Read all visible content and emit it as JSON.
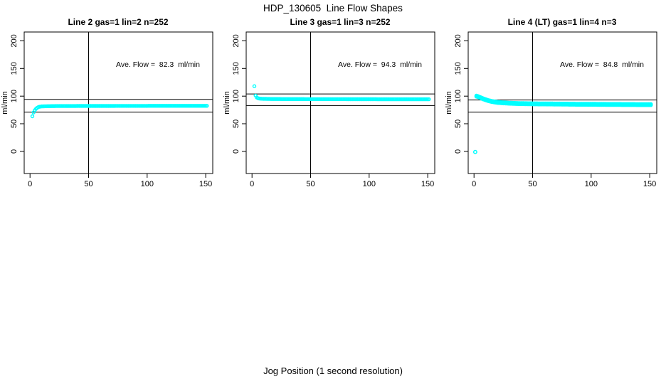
{
  "figure": {
    "title": "HDP_130605  Line Flow Shapes",
    "xlabel": "Jog Position (1 second resolution)",
    "ylabel": "ml/min",
    "background": "#FFFFFF",
    "axis_color": "#000000",
    "marker_color": "#00FFFF"
  },
  "chart_data": [
    {
      "type": "scatter",
      "title": "Line 2 gas=1 lin=2 n=252",
      "annotation": "Ave. Flow =  82.3  ml/min",
      "ave_flow_ml_min": 82.3,
      "gas": 1,
      "lin": 2,
      "n": 252,
      "xlim": [
        -5,
        156
      ],
      "ylim": [
        -40,
        216
      ],
      "xticks": [
        0,
        50,
        100,
        150
      ],
      "yticks": [
        0,
        50,
        100,
        150,
        200
      ],
      "ylabel": "ml/min",
      "grid": false,
      "reference_lines": {
        "vertical_x": 50,
        "horizontal_y": [
          94,
          71
        ]
      },
      "marker": "open-circle",
      "marker_color": "#00FFFF",
      "x_start": 2,
      "x_end": 151,
      "x_step": 1,
      "band_offsets": [
        0
      ],
      "anchors": [
        [
          2,
          63.5
        ],
        [
          3,
          70.5
        ],
        [
          4,
          74.5
        ],
        [
          5,
          77
        ],
        [
          6,
          78.8
        ],
        [
          7,
          80
        ],
        [
          8,
          80.8
        ],
        [
          10,
          81.4
        ],
        [
          15,
          81.8
        ],
        [
          20,
          82
        ],
        [
          30,
          82.1
        ],
        [
          50,
          82.2
        ],
        [
          80,
          82.3
        ],
        [
          100,
          82.4
        ],
        [
          120,
          82.5
        ],
        [
          151,
          82.5
        ]
      ],
      "outliers": []
    },
    {
      "type": "scatter",
      "title": "Line 3 gas=1 lin=3 n=252",
      "annotation": "Ave. Flow =  94.3  ml/min",
      "ave_flow_ml_min": 94.3,
      "gas": 1,
      "lin": 3,
      "n": 252,
      "xlim": [
        -5,
        156
      ],
      "ylim": [
        -40,
        216
      ],
      "xticks": [
        0,
        50,
        100,
        150
      ],
      "yticks": [
        0,
        50,
        100,
        150,
        200
      ],
      "ylabel": "ml/min",
      "grid": false,
      "reference_lines": {
        "vertical_x": 50,
        "horizontal_y": [
          104,
          83
        ]
      },
      "marker": "open-circle",
      "marker_color": "#00FFFF",
      "x_start": 2,
      "x_end": 151,
      "x_step": 1,
      "band_offsets": [
        0
      ],
      "anchors": [
        [
          2,
          118
        ],
        [
          3,
          101
        ],
        [
          4,
          97.5
        ],
        [
          5,
          96.2
        ],
        [
          6,
          95.7
        ],
        [
          8,
          95.3
        ],
        [
          10,
          95.1
        ],
        [
          15,
          94.9
        ],
        [
          20,
          94.8
        ],
        [
          30,
          94.7
        ],
        [
          50,
          94.6
        ],
        [
          80,
          94.5
        ],
        [
          100,
          94.4
        ],
        [
          120,
          94.3
        ],
        [
          151,
          94.3
        ]
      ],
      "outliers": []
    },
    {
      "type": "scatter",
      "title": "Line 4 (LT) gas=1 lin=4 n=3",
      "annotation": "Ave. Flow =  84.8  ml/min",
      "ave_flow_ml_min": 84.8,
      "gas": 1,
      "lin": 4,
      "n": 3,
      "xlim": [
        -5,
        156
      ],
      "ylim": [
        -40,
        216
      ],
      "xticks": [
        0,
        50,
        100,
        150
      ],
      "yticks": [
        0,
        50,
        100,
        150,
        200
      ],
      "ylabel": "ml/min",
      "grid": false,
      "reference_lines": {
        "vertical_x": 50,
        "horizontal_y": [
          93,
          71
        ]
      },
      "marker": "open-circle",
      "marker_color": "#00FFFF",
      "x_start": 2,
      "x_end": 151,
      "x_step": 1,
      "band_offsets": [
        -0.9,
        0,
        0.9
      ],
      "anchors": [
        [
          2,
          100
        ],
        [
          3,
          99.4
        ],
        [
          4,
          98.6
        ],
        [
          5,
          97.7
        ],
        [
          6,
          96.8
        ],
        [
          8,
          95
        ],
        [
          10,
          93.4
        ],
        [
          12,
          92
        ],
        [
          15,
          90.4
        ],
        [
          18,
          89.3
        ],
        [
          20,
          88.7
        ],
        [
          25,
          87.8
        ],
        [
          30,
          87.2
        ],
        [
          35,
          86.8
        ],
        [
          40,
          86.5
        ],
        [
          50,
          86.1
        ],
        [
          60,
          85.9
        ],
        [
          70,
          85.7
        ],
        [
          80,
          85.5
        ],
        [
          90,
          85.3
        ],
        [
          100,
          85.2
        ],
        [
          110,
          85
        ],
        [
          120,
          84.9
        ],
        [
          130,
          84.8
        ],
        [
          140,
          84.7
        ],
        [
          151,
          84.6
        ]
      ],
      "outliers": [
        [
          1,
          -1
        ]
      ]
    }
  ]
}
